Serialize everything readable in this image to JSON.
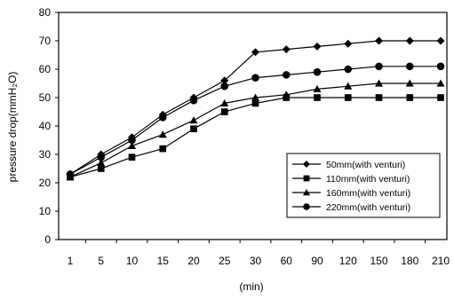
{
  "chart_data": {
    "type": "line",
    "title": "",
    "xlabel": "(min)",
    "ylabel": "pressure drop(mmH₂O)",
    "ylim": [
      0,
      80
    ],
    "yticks": [
      "0",
      "10",
      "20",
      "30",
      "40",
      "50",
      "60",
      "70",
      "80"
    ],
    "categories": [
      "1",
      "5",
      "10",
      "15",
      "20",
      "25",
      "30",
      "60",
      "90",
      "120",
      "150",
      "180",
      "210"
    ],
    "grid": false,
    "legend_position": "bottom-right",
    "series": [
      {
        "name": "50mm(with venturi)",
        "marker": "diamond",
        "values": [
          23,
          30,
          36,
          44,
          50,
          56,
          66,
          67,
          68,
          69,
          70,
          70,
          70
        ]
      },
      {
        "name": "110mm(with venturi)",
        "marker": "square",
        "values": [
          22,
          25,
          29,
          32,
          39,
          45,
          48,
          50,
          50,
          50,
          50,
          50,
          50
        ]
      },
      {
        "name": "160mm(with venturi)",
        "marker": "triangle",
        "values": [
          22,
          27,
          33,
          37,
          42,
          48,
          50,
          51,
          53,
          54,
          55,
          55,
          55
        ]
      },
      {
        "name": "220mm(with venturi)",
        "marker": "circle",
        "values": [
          23,
          29,
          35,
          43,
          49,
          54,
          57,
          58,
          59,
          60,
          61,
          61,
          61
        ]
      }
    ]
  }
}
